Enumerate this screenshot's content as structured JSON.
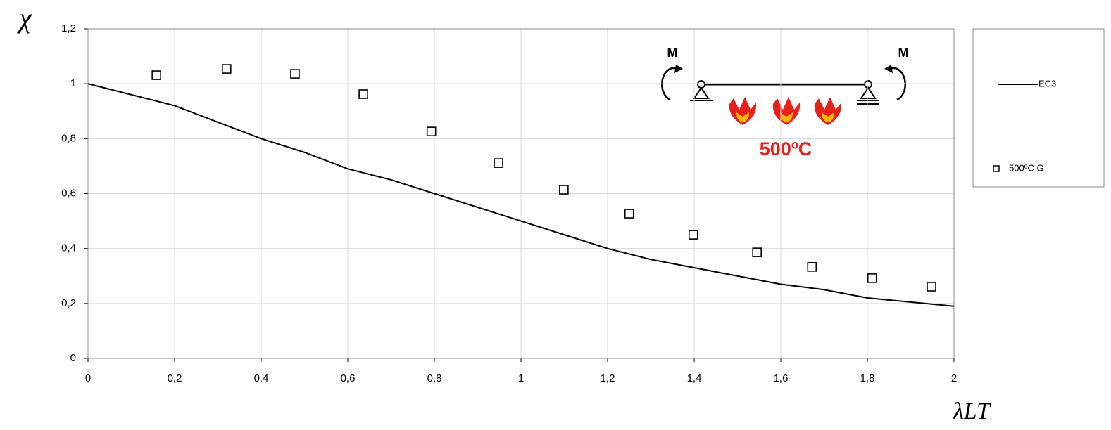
{
  "chart_data": {
    "type": "line",
    "x_label": "λLT",
    "y_label": "χ",
    "xlim": [
      0,
      2
    ],
    "xticks": [
      0,
      {
        "value": 0.2,
        "label": "0,2"
      },
      {
        "value": 0.4,
        "label": "0,4"
      },
      {
        "value": 0.6,
        "label": "0,6"
      },
      {
        "value": 0.8,
        "label": "0,8"
      },
      1,
      {
        "value": 1.2,
        "label": "1,2"
      },
      {
        "value": 1.4,
        "label": "1,4"
      },
      {
        "value": 1.6,
        "label": "1,6"
      },
      {
        "value": 1.8,
        "label": "1,8"
      },
      2
    ],
    "ylim": [
      0,
      1.2
    ],
    "yticks": [
      0,
      {
        "value": 0.2,
        "label": "0,2"
      },
      {
        "value": 0.4,
        "label": "0,4"
      },
      {
        "value": 0.6,
        "label": "0,6"
      },
      {
        "value": 0.8,
        "label": "0,8"
      },
      1,
      {
        "value": 1.2,
        "label": "1,2"
      }
    ],
    "grid": true,
    "legend": "right",
    "series": [
      {
        "name": "EC3",
        "color": "#000000",
        "x": [
          0,
          0.1,
          0.2,
          0.3,
          0.4,
          0.5,
          0.6,
          0.7,
          0.8,
          0.9,
          1.0,
          1.1,
          1.2,
          1.3,
          1.4,
          1.5,
          1.6,
          1.7,
          1.8,
          1.9,
          2.0
        ],
        "values": [
          1,
          0.96,
          0.92,
          0.86,
          0.8,
          0.75,
          0.69,
          0.65,
          0.6,
          0.55,
          0.5,
          0.45,
          0.4,
          0.36,
          0.33,
          0.3,
          0.27,
          0.25,
          0.22,
          0.205,
          0.19
        ]
      },
      {
        "name": "500ºC G",
        "color": "#000000",
        "marker": "square",
        "x": [
          0.158,
          0.32,
          0.478,
          0.636,
          0.793,
          0.948,
          1.099,
          1.25,
          1.398,
          1.545,
          1.672,
          1.811,
          1.948
        ],
        "values": [
          1.031,
          1.054,
          1.036,
          0.962,
          0.826,
          0.711,
          0.614,
          0.527,
          0.45,
          0.386,
          0.333,
          0.292,
          0.261
        ]
      }
    ],
    "annotations": [
      "M",
      "M",
      "500ºC"
    ]
  }
}
